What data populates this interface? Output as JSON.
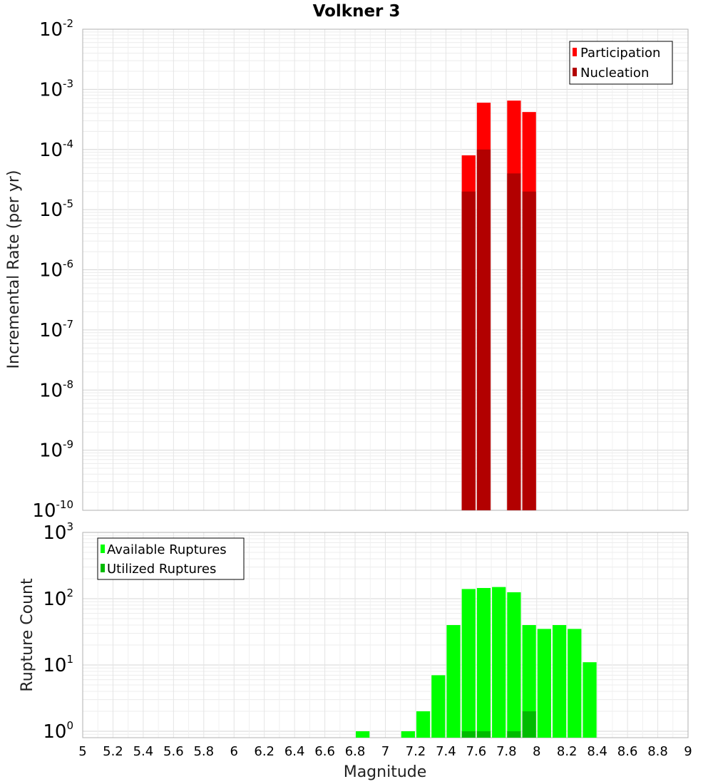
{
  "chart_data": [
    {
      "type": "bar",
      "title": "Volkner 3",
      "ylabel": "Incremental Rate (per yr)",
      "yscale": "log",
      "ylim": [
        1e-10,
        0.01
      ],
      "xlim": [
        5,
        9
      ],
      "ytick_labels": [
        {
          "base": "10",
          "exp": "-2"
        },
        {
          "base": "10",
          "exp": "-3"
        },
        {
          "base": "10",
          "exp": "-4"
        },
        {
          "base": "10",
          "exp": "-5"
        },
        {
          "base": "10",
          "exp": "-6"
        },
        {
          "base": "10",
          "exp": "-7"
        },
        {
          "base": "10",
          "exp": "-8"
        },
        {
          "base": "10",
          "exp": "-9"
        },
        {
          "base": "10",
          "exp": "-10"
        }
      ],
      "legend_position": "top-right",
      "series": [
        {
          "name": "Participation",
          "color": "#ff0000",
          "x": [
            7.55,
            7.65,
            7.85,
            7.95
          ],
          "values": [
            8e-05,
            0.0006,
            0.00065,
            0.00042
          ]
        },
        {
          "name": "Nucleation",
          "color": "#b20000",
          "x": [
            7.55,
            7.65,
            7.85,
            7.95
          ],
          "values": [
            2e-05,
            0.0001,
            4e-05,
            2e-05
          ]
        }
      ],
      "grid": true
    },
    {
      "type": "bar",
      "xlabel": "Magnitude",
      "ylabel": "Rupture Count",
      "yscale": "log",
      "ylim": [
        0.8,
        1000
      ],
      "xlim": [
        5,
        9
      ],
      "ytick_labels": [
        {
          "base": "10",
          "exp": "3"
        },
        {
          "base": "10",
          "exp": "2"
        },
        {
          "base": "10",
          "exp": "1"
        },
        {
          "base": "10",
          "exp": "0"
        }
      ],
      "xtick_labels": [
        "5",
        "5.2",
        "5.4",
        "5.6",
        "5.8",
        "6",
        "6.2",
        "6.4",
        "6.6",
        "6.8",
        "7",
        "7.2",
        "7.4",
        "7.6",
        "7.8",
        "8",
        "8.2",
        "8.4",
        "8.6",
        "8.8",
        "9"
      ],
      "legend_position": "top-left",
      "series": [
        {
          "name": "Available Ruptures",
          "color": "#00ff00",
          "x": [
            6.85,
            7.15,
            7.25,
            7.35,
            7.45,
            7.55,
            7.65,
            7.75,
            7.85,
            7.95,
            8.05,
            8.15,
            8.25,
            8.35
          ],
          "values": [
            1,
            1,
            2,
            7,
            40,
            140,
            145,
            150,
            125,
            40,
            35,
            40,
            35,
            11
          ]
        },
        {
          "name": "Utilized Ruptures",
          "color": "#00bb00",
          "x": [
            7.55,
            7.65,
            7.85,
            7.95
          ],
          "values": [
            1,
            1,
            1,
            2
          ]
        }
      ],
      "grid": true
    }
  ]
}
